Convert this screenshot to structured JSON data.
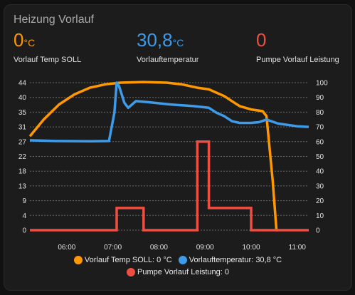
{
  "card": {
    "title": "Heizung Vorlauf"
  },
  "stats": [
    {
      "value": "0",
      "unit": "°C",
      "label": "Vorlauf Temp SOLL",
      "color": "#ff9800"
    },
    {
      "value": "30,8",
      "unit": "°C",
      "label": "Vorlauftemperatur",
      "color": "#3d9be9"
    },
    {
      "value": "0",
      "unit": "",
      "label": "Pumpe Vorlauf Leistung",
      "color": "#ef4f42"
    }
  ],
  "legend": [
    {
      "text": "Vorlauf Temp SOLL: 0 °C",
      "color": "#ff9800"
    },
    {
      "text": "Vorlauftemperatur: 30,8 °C",
      "color": "#3d9be9"
    },
    {
      "text": "Pumpe Vorlauf Leistung: 0",
      "color": "#ef4f42"
    }
  ],
  "chart_data": {
    "type": "line",
    "x_ticks": [
      "06:00",
      "07:00",
      "08:00",
      "09:00",
      "10:00",
      "11:00"
    ],
    "y_left_ticks": [
      0,
      4,
      9,
      13,
      18,
      22,
      27,
      31,
      35,
      40,
      44
    ],
    "y_right_ticks": [
      0,
      10,
      20,
      30,
      40,
      50,
      60,
      70,
      80,
      90,
      100
    ],
    "y_left_range": [
      0,
      44
    ],
    "y_right_range": [
      0,
      100
    ],
    "grid": true,
    "series": [
      {
        "name": "Vorlauf Temp SOLL",
        "axis": "left",
        "color": "#ff9800",
        "points": [
          [
            "05:12",
            28
          ],
          [
            "05:30",
            33
          ],
          [
            "05:50",
            37.5
          ],
          [
            "06:10",
            40.5
          ],
          [
            "06:30",
            42.5
          ],
          [
            "06:50",
            43.5
          ],
          [
            "07:10",
            44
          ],
          [
            "07:40",
            44.2
          ],
          [
            "08:10",
            44
          ],
          [
            "08:30",
            43.5
          ],
          [
            "08:50",
            42.5
          ],
          [
            "09:05",
            42
          ],
          [
            "09:15",
            41
          ],
          [
            "09:25",
            40
          ],
          [
            "09:35",
            38.5
          ],
          [
            "09:45",
            37
          ],
          [
            "10:00",
            36
          ],
          [
            "10:15",
            35.5
          ],
          [
            "10:20",
            34
          ],
          [
            "10:28",
            15
          ],
          [
            "10:33",
            0
          ],
          [
            "10:35",
            0
          ]
        ]
      },
      {
        "name": "Vorlauftemperatur",
        "axis": "left",
        "color": "#3d9be9",
        "points": [
          [
            "05:12",
            26.8
          ],
          [
            "05:45",
            26.6
          ],
          [
            "06:30",
            26.5
          ],
          [
            "06:55",
            26.6
          ],
          [
            "07:02",
            35
          ],
          [
            "07:05",
            44
          ],
          [
            "07:08",
            43
          ],
          [
            "07:15",
            38
          ],
          [
            "07:20",
            36.5
          ],
          [
            "07:30",
            38.5
          ],
          [
            "07:45",
            38.2
          ],
          [
            "08:15",
            37.5
          ],
          [
            "08:45",
            37
          ],
          [
            "09:05",
            36.5
          ],
          [
            "09:15",
            35
          ],
          [
            "09:25",
            34
          ],
          [
            "09:35",
            32.5
          ],
          [
            "09:45",
            32
          ],
          [
            "10:00",
            32
          ],
          [
            "10:10",
            32.2
          ],
          [
            "10:20",
            33
          ],
          [
            "10:35",
            31.8
          ],
          [
            "11:00",
            31
          ],
          [
            "11:15",
            30.8
          ]
        ]
      },
      {
        "name": "Pumpe Vorlauf Leistung",
        "axis": "right",
        "color": "#ef4f42",
        "step": true,
        "points": [
          [
            "05:12",
            0
          ],
          [
            "07:05",
            0
          ],
          [
            "07:05",
            15
          ],
          [
            "07:40",
            15
          ],
          [
            "07:40",
            0
          ],
          [
            "08:50",
            0
          ],
          [
            "08:50",
            60
          ],
          [
            "09:05",
            60
          ],
          [
            "09:05",
            15
          ],
          [
            "10:00",
            15
          ],
          [
            "10:00",
            0
          ],
          [
            "11:15",
            0
          ]
        ]
      }
    ]
  }
}
